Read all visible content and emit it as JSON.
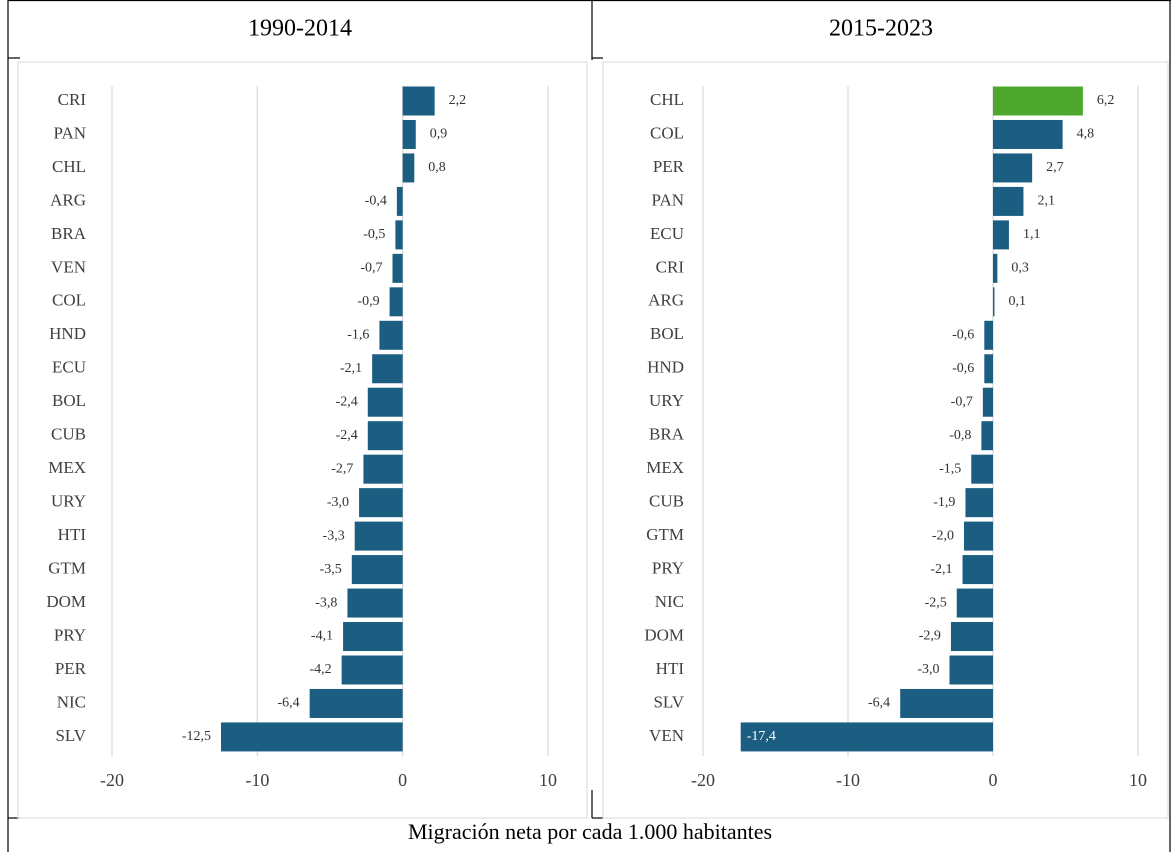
{
  "chart_data": [
    {
      "type": "bar",
      "orientation": "horizontal",
      "title": "1990-2014",
      "categories": [
        "CRI",
        "PAN",
        "CHL",
        "ARG",
        "BRA",
        "VEN",
        "COL",
        "HND",
        "ECU",
        "BOL",
        "CUB",
        "MEX",
        "URY",
        "HTI",
        "GTM",
        "DOM",
        "PRY",
        "PER",
        "NIC",
        "SLV"
      ],
      "values": [
        2.2,
        0.9,
        0.8,
        -0.4,
        -0.5,
        -0.7,
        -0.9,
        -1.6,
        -2.1,
        -2.4,
        -2.4,
        -2.7,
        -3.0,
        -3.3,
        -3.5,
        -3.8,
        -4.1,
        -4.2,
        -6.4,
        -12.5
      ],
      "value_labels": [
        "2,2",
        "0,9",
        "0,8",
        "-0,4",
        "-0,5",
        "-0,7",
        "-0,9",
        "-1,6",
        "-2,1",
        "-2,4",
        "-2,4",
        "-2,7",
        "-3,0",
        "-3,3",
        "-3,5",
        "-3,8",
        "-4,1",
        "-4,2",
        "-6,4",
        "-12,5"
      ],
      "colors": [
        "#1b5e82",
        "#1b5e82",
        "#1b5e82",
        "#1b5e82",
        "#1b5e82",
        "#1b5e82",
        "#1b5e82",
        "#1b5e82",
        "#1b5e82",
        "#1b5e82",
        "#1b5e82",
        "#1b5e82",
        "#1b5e82",
        "#1b5e82",
        "#1b5e82",
        "#1b5e82",
        "#1b5e82",
        "#1b5e82",
        "#1b5e82",
        "#1b5e82"
      ],
      "xlim": [
        -20,
        10
      ],
      "xticks": [
        -20,
        -10,
        0,
        10
      ],
      "grid": true
    },
    {
      "type": "bar",
      "orientation": "horizontal",
      "title": "2015-2023",
      "categories": [
        "CHL",
        "COL",
        "PER",
        "PAN",
        "ECU",
        "CRI",
        "ARG",
        "BOL",
        "HND",
        "URY",
        "BRA",
        "MEX",
        "CUB",
        "GTM",
        "PRY",
        "NIC",
        "DOM",
        "HTI",
        "SLV",
        "VEN"
      ],
      "values": [
        6.2,
        4.8,
        2.7,
        2.1,
        1.1,
        0.3,
        0.1,
        -0.6,
        -0.6,
        -0.7,
        -0.8,
        -1.5,
        -1.9,
        -2.0,
        -2.1,
        -2.5,
        -2.9,
        -3.0,
        -6.4,
        -17.4
      ],
      "value_labels": [
        "6,2",
        "4,8",
        "2,7",
        "2,1",
        "1,1",
        "0,3",
        "0,1",
        "-0,6",
        "-0,6",
        "-0,7",
        "-0,8",
        "-1,5",
        "-1,9",
        "-2,0",
        "-2,1",
        "-2,5",
        "-2,9",
        "-3,0",
        "-6,4",
        "-17,4"
      ],
      "colors": [
        "#4ea72e",
        "#1b5e82",
        "#1b5e82",
        "#1b5e82",
        "#1b5e82",
        "#1b5e82",
        "#1b5e82",
        "#1b5e82",
        "#1b5e82",
        "#1b5e82",
        "#1b5e82",
        "#1b5e82",
        "#1b5e82",
        "#1b5e82",
        "#1b5e82",
        "#1b5e82",
        "#1b5e82",
        "#1b5e82",
        "#1b5e82",
        "#1b5e82"
      ],
      "xlim": [
        -20,
        10
      ],
      "xticks": [
        -20,
        -10,
        0,
        10
      ],
      "grid": true
    }
  ],
  "footer": {
    "text": "Migración neta por cada 1.000 habitantes"
  }
}
